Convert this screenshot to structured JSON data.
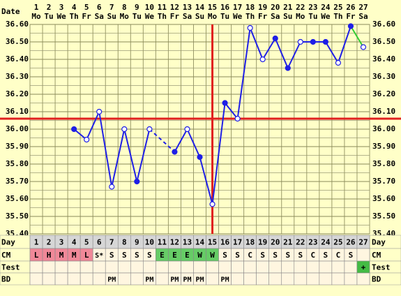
{
  "chart_data": {
    "type": "line",
    "x_label": "Date",
    "days": [
      1,
      2,
      3,
      4,
      5,
      6,
      7,
      8,
      9,
      10,
      11,
      12,
      13,
      14,
      15,
      16,
      17,
      18,
      19,
      20,
      21,
      22,
      23,
      24,
      25,
      26,
      27
    ],
    "weekdays": [
      "Mo",
      "Tu",
      "We",
      "Th",
      "Fr",
      "Sa",
      "Su",
      "Mo",
      "Tu",
      "We",
      "Th",
      "Fr",
      "Sa",
      "Su",
      "Mo",
      "Tu",
      "We",
      "Th",
      "Fr",
      "Sa",
      "Su",
      "Mo",
      "Tu",
      "We",
      "Th",
      "Fr",
      "Sa"
    ],
    "values": [
      null,
      null,
      null,
      36.0,
      35.94,
      36.1,
      35.67,
      36.0,
      35.7,
      36.0,
      null,
      35.87,
      36.0,
      35.84,
      35.57,
      36.15,
      36.06,
      36.58,
      36.4,
      36.52,
      36.35,
      36.5,
      36.5,
      36.5,
      36.38,
      36.59,
      36.47
    ],
    "markers": [
      null,
      null,
      null,
      "filled",
      "open",
      "open",
      "open",
      "open",
      "filled",
      "open",
      null,
      "filled",
      "open",
      "filled",
      "open",
      "filled",
      "open",
      "open",
      "open",
      "filled",
      "filled",
      "open",
      "filled",
      "filled",
      "open",
      "filled",
      "open"
    ],
    "color": "#1f1fe6",
    "tail_color": "#33cc33",
    "ylim": [
      35.4,
      36.6
    ],
    "yticks": [
      {
        "value": 36.6,
        "label": "36.60"
      },
      {
        "value": 36.5,
        "label": "36.50"
      },
      {
        "value": 36.4,
        "label": "36.40"
      },
      {
        "value": 36.3,
        "label": "36.30"
      },
      {
        "value": 36.2,
        "label": "36.20"
      },
      {
        "value": 36.1,
        "label": "36.10"
      },
      {
        "value": 36.0,
        "label": "36.00"
      },
      {
        "value": 35.9,
        "label": "35.90"
      },
      {
        "value": 35.8,
        "label": "35.80"
      },
      {
        "value": 35.7,
        "label": "35.70"
      },
      {
        "value": 35.6,
        "label": "35.60"
      },
      {
        "value": 35.5,
        "label": "35.50"
      },
      {
        "value": 35.4,
        "label": "35.40"
      }
    ],
    "minor_yticks": [
      36.55,
      36.45,
      36.35,
      36.25,
      36.15,
      36.05,
      35.95,
      35.85,
      35.75,
      35.65,
      35.55,
      35.45
    ],
    "grid": true,
    "coverline": {
      "value": 36.06,
      "color": "#e02020"
    },
    "marker_day": {
      "value": 15,
      "color": "#e02020"
    },
    "rows": [
      {
        "label": "Day"
      },
      {
        "label": "CM",
        "cells": [
          "L",
          "H",
          "M",
          "M",
          "L",
          "S*",
          "S",
          "S",
          "S",
          "S",
          "E",
          "E",
          "E",
          "W",
          "W",
          "S",
          "S",
          "C",
          "S",
          "S",
          "S",
          "S",
          "C",
          "S",
          "C",
          "S",
          null
        ],
        "colors": [
          "#f08898",
          "#f08898",
          "#f08898",
          "#f08898",
          "#f08898",
          null,
          null,
          null,
          null,
          null,
          "#66cc66",
          "#66cc66",
          "#66cc66",
          "#66cc66",
          "#66cc66",
          null,
          null,
          null,
          null,
          null,
          null,
          null,
          null,
          null,
          null,
          null,
          null
        ]
      },
      {
        "label": "Test",
        "cells": [
          null,
          null,
          null,
          null,
          null,
          null,
          null,
          null,
          null,
          null,
          null,
          null,
          null,
          null,
          null,
          null,
          null,
          null,
          null,
          null,
          null,
          null,
          null,
          null,
          null,
          null,
          "+"
        ],
        "colors": [
          null,
          null,
          null,
          null,
          null,
          null,
          null,
          null,
          null,
          null,
          null,
          null,
          null,
          null,
          null,
          null,
          null,
          null,
          null,
          null,
          null,
          null,
          null,
          null,
          null,
          null,
          "#44bb44"
        ]
      },
      {
        "label": "BD",
        "cells": [
          null,
          null,
          null,
          null,
          null,
          null,
          "PM",
          null,
          null,
          "PM",
          null,
          "PM",
          "PM",
          "PM",
          null,
          "PM",
          null,
          null,
          null,
          null,
          null,
          null,
          null,
          null,
          null,
          null,
          null
        ]
      }
    ]
  }
}
